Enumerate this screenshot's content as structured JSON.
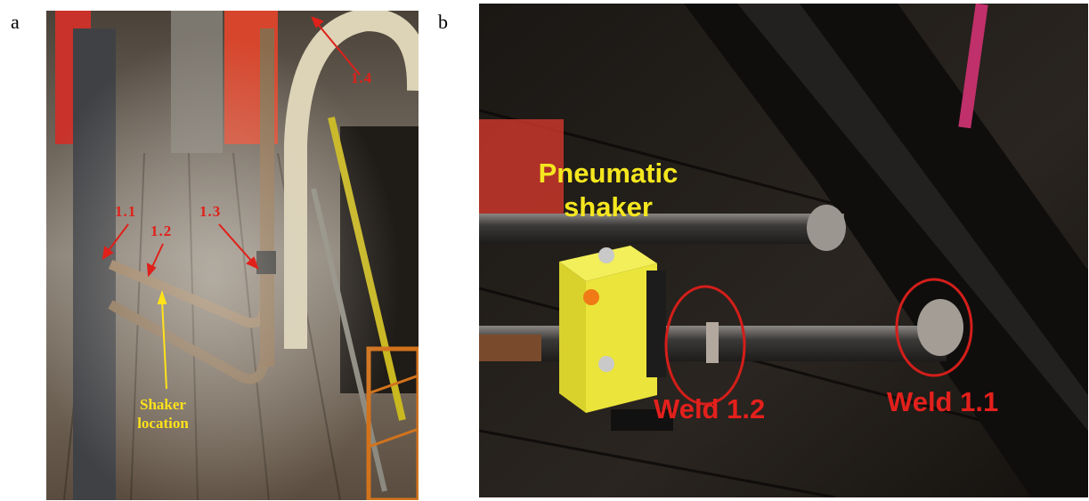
{
  "panels": {
    "a": {
      "letter": "a",
      "labels": {
        "weld_1_1": "1.1",
        "weld_1_2": "1.2",
        "weld_1_3": "1.3",
        "weld_1_4": "1.4",
        "shaker": "Shaker location"
      }
    },
    "b": {
      "letter": "b",
      "labels": {
        "shaker": "Pneumatic shaker",
        "weld_1_2": "Weld 1.2",
        "weld_1_1": "Weld 1.1"
      }
    }
  },
  "colors": {
    "annotation_red": "#e0201a",
    "annotation_yellow": "#ffe21a",
    "shaker_body": "#e8e83a"
  }
}
